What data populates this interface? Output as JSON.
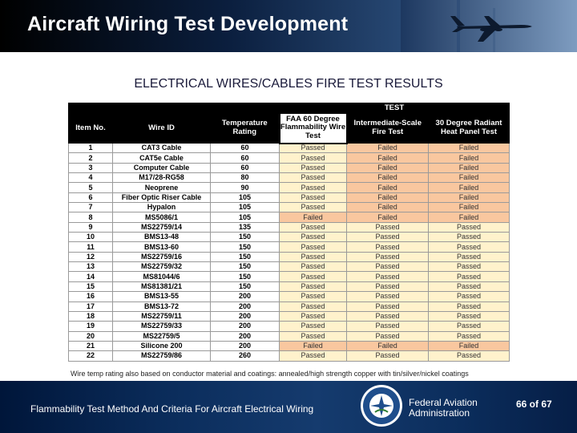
{
  "header": {
    "title": "Aircraft Wiring Test Development"
  },
  "subtitle": "ELECTRICAL WIRES/CABLES FIRE TEST RESULTS",
  "table": {
    "group_header": "TEST",
    "columns": {
      "item": "Item No.",
      "wire": "Wire ID",
      "temp": "Temperature Rating",
      "faa": "FAA 60 Degree Flammability Wire Test",
      "inter": "Intermediate-Scale Fire Test",
      "radiant": "30 Degree Radiant Heat Panel Test"
    },
    "rows": [
      {
        "item": "1",
        "wire": "CAT3 Cable",
        "temp": "60",
        "faa": "Passed",
        "inter": "Failed",
        "radiant": "Failed"
      },
      {
        "item": "2",
        "wire": "CAT5e Cable",
        "temp": "60",
        "faa": "Passed",
        "inter": "Failed",
        "radiant": "Failed"
      },
      {
        "item": "3",
        "wire": "Computer Cable",
        "temp": "60",
        "faa": "Passed",
        "inter": "Failed",
        "radiant": "Failed"
      },
      {
        "item": "4",
        "wire": "M17/28-RG58",
        "temp": "80",
        "faa": "Passed",
        "inter": "Failed",
        "radiant": "Failed"
      },
      {
        "item": "5",
        "wire": "Neoprene",
        "temp": "90",
        "faa": "Passed",
        "inter": "Failed",
        "radiant": "Failed"
      },
      {
        "item": "6",
        "wire": "Fiber Optic Riser Cable",
        "temp": "105",
        "faa": "Passed",
        "inter": "Failed",
        "radiant": "Failed"
      },
      {
        "item": "7",
        "wire": "Hypalon",
        "temp": "105",
        "faa": "Passed",
        "inter": "Failed",
        "radiant": "Failed"
      },
      {
        "item": "8",
        "wire": "MS5086/1",
        "temp": "105",
        "faa": "Failed",
        "inter": "Failed",
        "radiant": "Failed"
      },
      {
        "item": "9",
        "wire": "MS22759/14",
        "temp": "135",
        "faa": "Passed",
        "inter": "Passed",
        "radiant": "Passed"
      },
      {
        "item": "10",
        "wire": "BMS13-48",
        "temp": "150",
        "faa": "Passed",
        "inter": "Passed",
        "radiant": "Passed"
      },
      {
        "item": "11",
        "wire": "BMS13-60",
        "temp": "150",
        "faa": "Passed",
        "inter": "Passed",
        "radiant": "Passed"
      },
      {
        "item": "12",
        "wire": "MS22759/16",
        "temp": "150",
        "faa": "Passed",
        "inter": "Passed",
        "radiant": "Passed"
      },
      {
        "item": "13",
        "wire": "MS22759/32",
        "temp": "150",
        "faa": "Passed",
        "inter": "Passed",
        "radiant": "Passed"
      },
      {
        "item": "14",
        "wire": "MS81044/6",
        "temp": "150",
        "faa": "Passed",
        "inter": "Passed",
        "radiant": "Passed"
      },
      {
        "item": "15",
        "wire": "MS81381/21",
        "temp": "150",
        "faa": "Passed",
        "inter": "Passed",
        "radiant": "Passed"
      },
      {
        "item": "16",
        "wire": "BMS13-55",
        "temp": "200",
        "faa": "Passed",
        "inter": "Passed",
        "radiant": "Passed"
      },
      {
        "item": "17",
        "wire": "BMS13-72",
        "temp": "200",
        "faa": "Passed",
        "inter": "Passed",
        "radiant": "Passed"
      },
      {
        "item": "18",
        "wire": "MS22759/11",
        "temp": "200",
        "faa": "Passed",
        "inter": "Passed",
        "radiant": "Passed"
      },
      {
        "item": "19",
        "wire": "MS22759/33",
        "temp": "200",
        "faa": "Passed",
        "inter": "Passed",
        "radiant": "Passed"
      },
      {
        "item": "20",
        "wire": "MS22759/5",
        "temp": "200",
        "faa": "Passed",
        "inter": "Passed",
        "radiant": "Passed"
      },
      {
        "item": "21",
        "wire": "Silicone 200",
        "temp": "200",
        "faa": "Failed",
        "inter": "Failed",
        "radiant": "Failed"
      },
      {
        "item": "22",
        "wire": "MS22759/86",
        "temp": "260",
        "faa": "Passed",
        "inter": "Passed",
        "radiant": "Passed"
      }
    ]
  },
  "footnote": "Wire temp rating also based on conductor material and coatings: annealed/high strength copper with tin/silver/nickel coatings",
  "footer": {
    "title": "Flammability Test Method And Criteria For Aircraft Electrical Wiring",
    "agency_line1": "Federal Aviation",
    "agency_line2": "Administration",
    "slide_number": "66 of 67"
  },
  "colors": {
    "passed_fill": "#fff2cc",
    "failed_fill": "#f9c79f",
    "header_bg": "#000000",
    "footer_bg": "#0b2d5c"
  },
  "icons": {
    "header_photo": "airplane-photo",
    "footer_logo": "faa-seal-icon"
  }
}
